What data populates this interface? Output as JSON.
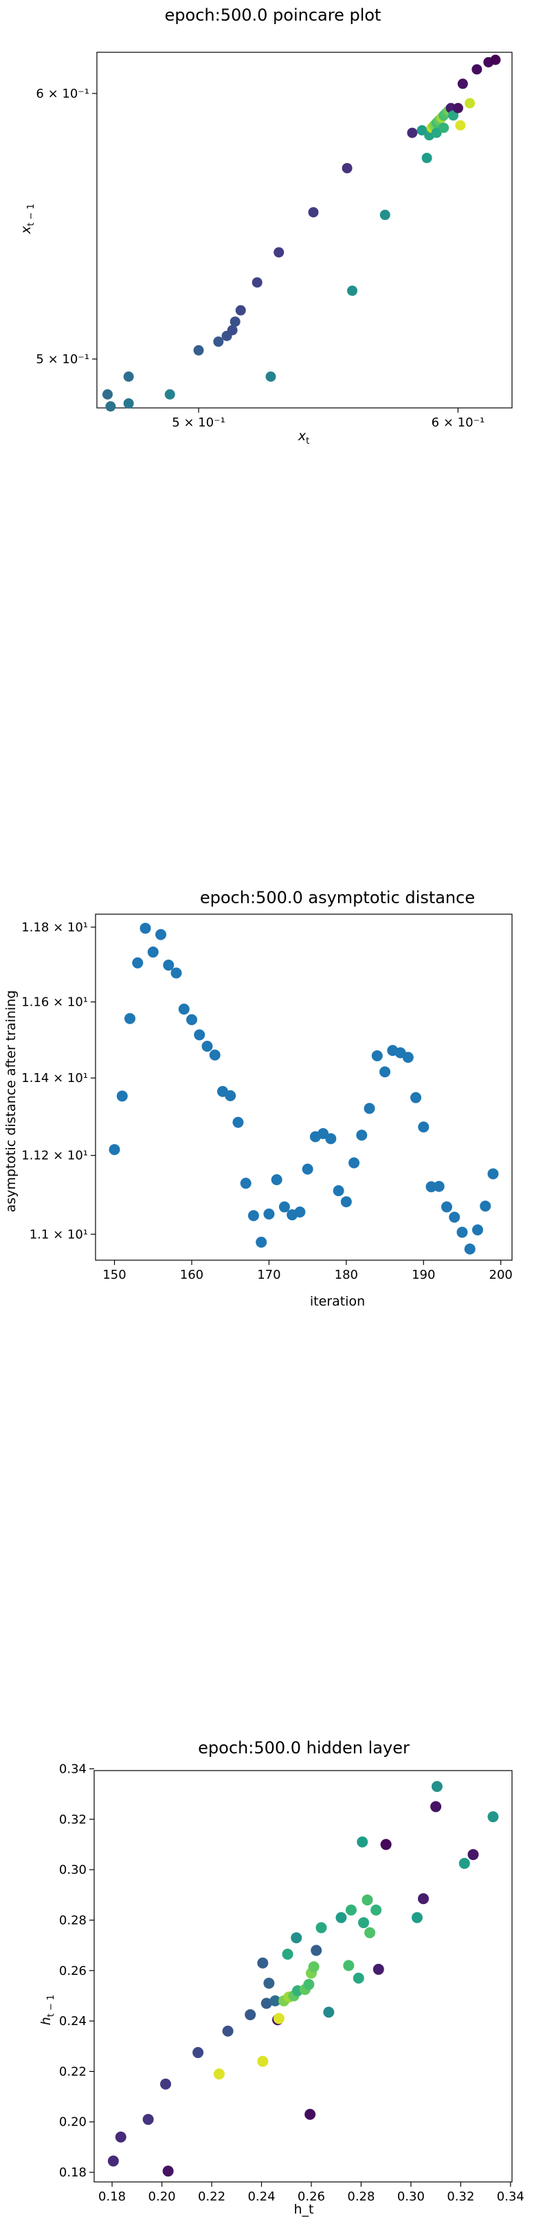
{
  "colors": {
    "viridis": [
      "#440154",
      "#482878",
      "#3e4989",
      "#31688e",
      "#26828e",
      "#1f9e89",
      "#35b779",
      "#6ece58",
      "#b5de2b",
      "#fde725"
    ],
    "single_series": "#1f77b4",
    "axes": "#000000"
  },
  "chart_data": [
    {
      "type": "scatter",
      "title": "epoch:500.0 poincare plot",
      "xlabel": "x_t",
      "ylabel": "x_{t-1}",
      "xscale": "log",
      "yscale": "log",
      "xlim": [
        0.4655,
        0.6232
      ],
      "ylim": [
        0.4835,
        0.6172
      ],
      "x_ticks": [
        {
          "value": 0.5,
          "label": "5 × 10⁻¹"
        },
        {
          "value": 0.6,
          "label": "6 × 10⁻¹"
        }
      ],
      "y_ticks": [
        {
          "value": 0.5,
          "label": "5 × 10⁻¹"
        },
        {
          "value": 0.6,
          "label": "6 × 10⁻¹"
        }
      ],
      "grid": false,
      "colormap": "viridis",
      "points": [
        {
          "x": 0.469,
          "y": 0.488,
          "c": 0.35
        },
        {
          "x": 0.47,
          "y": 0.484,
          "c": 0.38
        },
        {
          "x": 0.476,
          "y": 0.485,
          "c": 0.4
        },
        {
          "x": 0.476,
          "y": 0.494,
          "c": 0.36
        },
        {
          "x": 0.49,
          "y": 0.488,
          "c": 0.45
        },
        {
          "x": 0.5,
          "y": 0.503,
          "c": 0.3
        },
        {
          "x": 0.507,
          "y": 0.506,
          "c": 0.28
        },
        {
          "x": 0.51,
          "y": 0.508,
          "c": 0.26
        },
        {
          "x": 0.512,
          "y": 0.51,
          "c": 0.24
        },
        {
          "x": 0.513,
          "y": 0.513,
          "c": 0.25
        },
        {
          "x": 0.515,
          "y": 0.517,
          "c": 0.22
        },
        {
          "x": 0.521,
          "y": 0.527,
          "c": 0.2
        },
        {
          "x": 0.526,
          "y": 0.494,
          "c": 0.45
        },
        {
          "x": 0.529,
          "y": 0.538,
          "c": 0.18
        },
        {
          "x": 0.542,
          "y": 0.553,
          "c": 0.18
        },
        {
          "x": 0.555,
          "y": 0.57,
          "c": 0.15
        },
        {
          "x": 0.557,
          "y": 0.524,
          "c": 0.5
        },
        {
          "x": 0.57,
          "y": 0.552,
          "c": 0.5
        },
        {
          "x": 0.581,
          "y": 0.584,
          "c": 0.12
        },
        {
          "x": 0.585,
          "y": 0.585,
          "c": 0.55
        },
        {
          "x": 0.587,
          "y": 0.574,
          "c": 0.55
        },
        {
          "x": 0.588,
          "y": 0.583,
          "c": 0.58
        },
        {
          "x": 0.589,
          "y": 0.586,
          "c": 0.9
        },
        {
          "x": 0.59,
          "y": 0.587,
          "c": 0.8
        },
        {
          "x": 0.591,
          "y": 0.588,
          "c": 0.7
        },
        {
          "x": 0.591,
          "y": 0.584,
          "c": 0.6
        },
        {
          "x": 0.592,
          "y": 0.589,
          "c": 0.75
        },
        {
          "x": 0.593,
          "y": 0.59,
          "c": 0.85
        },
        {
          "x": 0.594,
          "y": 0.591,
          "c": 0.7
        },
        {
          "x": 0.594,
          "y": 0.586,
          "c": 0.65
        },
        {
          "x": 0.595,
          "y": 0.592,
          "c": 0.72
        },
        {
          "x": 0.596,
          "y": 0.593,
          "c": 0.78
        },
        {
          "x": 0.597,
          "y": 0.594,
          "c": 0.08
        },
        {
          "x": 0.598,
          "y": 0.591,
          "c": 0.6
        },
        {
          "x": 0.6,
          "y": 0.594,
          "c": 0.05
        },
        {
          "x": 0.601,
          "y": 0.587,
          "c": 0.95
        },
        {
          "x": 0.602,
          "y": 0.604,
          "c": 0.05
        },
        {
          "x": 0.605,
          "y": 0.596,
          "c": 0.92
        },
        {
          "x": 0.608,
          "y": 0.61,
          "c": 0.03
        },
        {
          "x": 0.613,
          "y": 0.613,
          "c": 0.02
        },
        {
          "x": 0.616,
          "y": 0.614,
          "c": 0.0
        }
      ]
    },
    {
      "type": "scatter",
      "title": "epoch:500.0 asymptotic distance",
      "xlabel": "iteration",
      "ylabel": "asymptotic distance after training",
      "yscale": "log",
      "xlim": [
        147.55,
        201.45
      ],
      "ylim": [
        10.935,
        11.835
      ],
      "x_ticks": [
        {
          "value": 150,
          "label": "150"
        },
        {
          "value": 160,
          "label": "160"
        },
        {
          "value": 170,
          "label": "170"
        },
        {
          "value": 180,
          "label": "180"
        },
        {
          "value": 190,
          "label": "190"
        },
        {
          "value": 200,
          "label": "200"
        }
      ],
      "y_ticks": [
        {
          "value": 11.0,
          "label": "1.1 × 10¹"
        },
        {
          "value": 11.2,
          "label": "1.12 × 10¹"
        },
        {
          "value": 11.4,
          "label": "1.14 × 10¹"
        },
        {
          "value": 11.6,
          "label": "1.16 × 10¹"
        },
        {
          "value": 11.8,
          "label": "1.18 × 10¹"
        }
      ],
      "grid": false,
      "x": [
        150,
        151,
        152,
        153,
        154,
        155,
        156,
        157,
        158,
        159,
        160,
        161,
        162,
        163,
        164,
        165,
        166,
        167,
        168,
        169,
        170,
        171,
        172,
        173,
        174,
        175,
        176,
        177,
        178,
        179,
        180,
        181,
        182,
        183,
        184,
        185,
        186,
        187,
        188,
        189,
        190,
        191,
        192,
        193,
        194,
        195,
        196,
        197,
        198,
        199
      ],
      "y": [
        11.215,
        11.353,
        11.556,
        11.704,
        11.797,
        11.733,
        11.78,
        11.698,
        11.677,
        11.581,
        11.553,
        11.513,
        11.483,
        11.46,
        11.365,
        11.354,
        11.285,
        11.129,
        11.047,
        10.98,
        11.051,
        11.138,
        11.069,
        11.049,
        11.056,
        11.165,
        11.248,
        11.256,
        11.243,
        11.11,
        11.082,
        11.181,
        11.252,
        11.321,
        11.458,
        11.416,
        11.472,
        11.466,
        11.454,
        11.349,
        11.273,
        11.12,
        11.121,
        11.069,
        11.043,
        11.005,
        10.963,
        11.011,
        11.071,
        11.153
      ],
      "point_color": "#1f77b4"
    },
    {
      "type": "scatter",
      "title": "epoch:500.0 hidden layer",
      "xlabel": "h_t",
      "ylabel": "h_{t-1}",
      "xlim": [
        0.1728,
        0.3406
      ],
      "ylim": [
        0.1762,
        0.3393
      ],
      "x_ticks": [
        {
          "value": 0.18,
          "label": "0.18"
        },
        {
          "value": 0.2,
          "label": "0.20"
        },
        {
          "value": 0.22,
          "label": "0.22"
        },
        {
          "value": 0.24,
          "label": "0.24"
        },
        {
          "value": 0.26,
          "label": "0.26"
        },
        {
          "value": 0.28,
          "label": "0.28"
        },
        {
          "value": 0.3,
          "label": "0.30"
        },
        {
          "value": 0.32,
          "label": "0.32"
        },
        {
          "value": 0.34,
          "label": "0.34"
        }
      ],
      "y_ticks": [
        {
          "value": 0.18,
          "label": "0.18"
        },
        {
          "value": 0.2,
          "label": "0.20"
        },
        {
          "value": 0.22,
          "label": "0.22"
        },
        {
          "value": 0.24,
          "label": "0.24"
        },
        {
          "value": 0.26,
          "label": "0.26"
        },
        {
          "value": 0.28,
          "label": "0.28"
        },
        {
          "value": 0.3,
          "label": "0.30"
        },
        {
          "value": 0.32,
          "label": "0.32"
        },
        {
          "value": 0.34,
          "label": "0.34"
        }
      ],
      "grid": false,
      "colormap": "viridis",
      "points": [
        {
          "x": 0.1805,
          "y": 0.1845,
          "c": 0.12
        },
        {
          "x": 0.1835,
          "y": 0.194,
          "c": 0.12
        },
        {
          "x": 0.1945,
          "y": 0.201,
          "c": 0.15
        },
        {
          "x": 0.2015,
          "y": 0.215,
          "c": 0.17
        },
        {
          "x": 0.2025,
          "y": 0.1805,
          "c": 0.05
        },
        {
          "x": 0.2145,
          "y": 0.2275,
          "c": 0.22
        },
        {
          "x": 0.223,
          "y": 0.219,
          "c": 0.95
        },
        {
          "x": 0.2265,
          "y": 0.236,
          "c": 0.25
        },
        {
          "x": 0.2355,
          "y": 0.2425,
          "c": 0.28
        },
        {
          "x": 0.2405,
          "y": 0.263,
          "c": 0.3
        },
        {
          "x": 0.2405,
          "y": 0.224,
          "c": 0.95
        },
        {
          "x": 0.242,
          "y": 0.247,
          "c": 0.3
        },
        {
          "x": 0.243,
          "y": 0.255,
          "c": 0.32
        },
        {
          "x": 0.2455,
          "y": 0.248,
          "c": 0.35
        },
        {
          "x": 0.2465,
          "y": 0.2405,
          "c": 0.05
        },
        {
          "x": 0.247,
          "y": 0.241,
          "c": 0.95
        },
        {
          "x": 0.249,
          "y": 0.248,
          "c": 0.8
        },
        {
          "x": 0.2505,
          "y": 0.2665,
          "c": 0.6
        },
        {
          "x": 0.251,
          "y": 0.2495,
          "c": 0.85
        },
        {
          "x": 0.253,
          "y": 0.25,
          "c": 0.75
        },
        {
          "x": 0.254,
          "y": 0.273,
          "c": 0.5
        },
        {
          "x": 0.2545,
          "y": 0.252,
          "c": 0.65
        },
        {
          "x": 0.2575,
          "y": 0.2525,
          "c": 0.75
        },
        {
          "x": 0.259,
          "y": 0.2545,
          "c": 0.7
        },
        {
          "x": 0.2595,
          "y": 0.203,
          "c": 0.03
        },
        {
          "x": 0.26,
          "y": 0.259,
          "c": 0.8
        },
        {
          "x": 0.261,
          "y": 0.2615,
          "c": 0.75
        },
        {
          "x": 0.262,
          "y": 0.268,
          "c": 0.3
        },
        {
          "x": 0.264,
          "y": 0.277,
          "c": 0.6
        },
        {
          "x": 0.267,
          "y": 0.2435,
          "c": 0.48
        },
        {
          "x": 0.272,
          "y": 0.281,
          "c": 0.55
        },
        {
          "x": 0.275,
          "y": 0.262,
          "c": 0.7
        },
        {
          "x": 0.276,
          "y": 0.284,
          "c": 0.65
        },
        {
          "x": 0.279,
          "y": 0.257,
          "c": 0.6
        },
        {
          "x": 0.2805,
          "y": 0.311,
          "c": 0.55
        },
        {
          "x": 0.281,
          "y": 0.279,
          "c": 0.6
        },
        {
          "x": 0.2825,
          "y": 0.288,
          "c": 0.7
        },
        {
          "x": 0.2835,
          "y": 0.275,
          "c": 0.72
        },
        {
          "x": 0.286,
          "y": 0.284,
          "c": 0.65
        },
        {
          "x": 0.287,
          "y": 0.2605,
          "c": 0.08
        },
        {
          "x": 0.29,
          "y": 0.31,
          "c": 0.02
        },
        {
          "x": 0.3025,
          "y": 0.281,
          "c": 0.55
        },
        {
          "x": 0.305,
          "y": 0.2885,
          "c": 0.08
        },
        {
          "x": 0.31,
          "y": 0.325,
          "c": 0.05
        },
        {
          "x": 0.3105,
          "y": 0.333,
          "c": 0.5
        },
        {
          "x": 0.3215,
          "y": 0.3025,
          "c": 0.55
        },
        {
          "x": 0.325,
          "y": 0.306,
          "c": 0.06
        },
        {
          "x": 0.333,
          "y": 0.321,
          "c": 0.52
        }
      ]
    }
  ]
}
